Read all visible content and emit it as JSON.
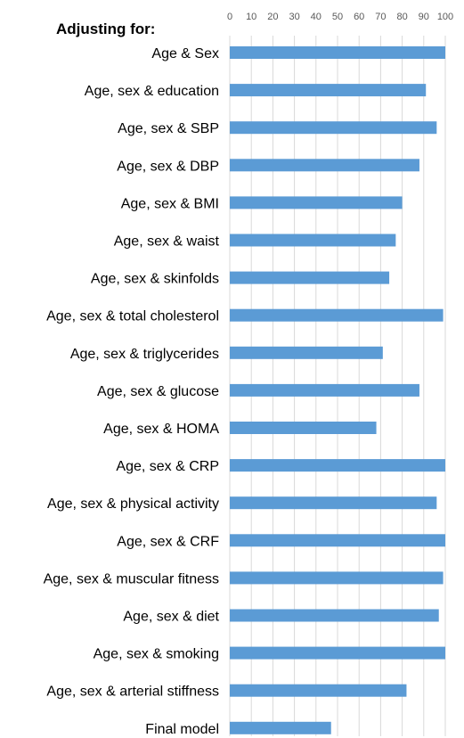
{
  "heading": "Adjusting for:",
  "chart_data": {
    "type": "bar",
    "orientation": "horizontal",
    "categories": [
      "Age & Sex",
      "Age, sex & education",
      "Age, sex & SBP",
      "Age, sex & DBP",
      "Age, sex & BMI",
      "Age, sex & waist",
      "Age, sex & skinfolds",
      "Age, sex & total cholesterol",
      "Age, sex & triglycerides",
      "Age, sex & glucose",
      "Age, sex & HOMA",
      "Age, sex & CRP",
      "Age, sex & physical activity",
      "Age, sex & CRF",
      "Age, sex & muscular fitness",
      "Age, sex & diet",
      "Age, sex & smoking",
      "Age, sex & arterial stiffness",
      "Final model"
    ],
    "values": [
      100,
      91,
      96,
      88,
      80,
      77,
      74,
      99,
      71,
      88,
      68,
      100,
      96,
      100,
      99,
      97,
      100,
      82,
      47
    ],
    "xlim": [
      0,
      100
    ],
    "xticks": [
      0,
      10,
      20,
      30,
      40,
      50,
      60,
      70,
      80,
      90,
      100
    ],
    "axis_position": "top",
    "grid": true,
    "bar_color": "#5B9BD5",
    "grid_color": "#D9D9D9"
  }
}
